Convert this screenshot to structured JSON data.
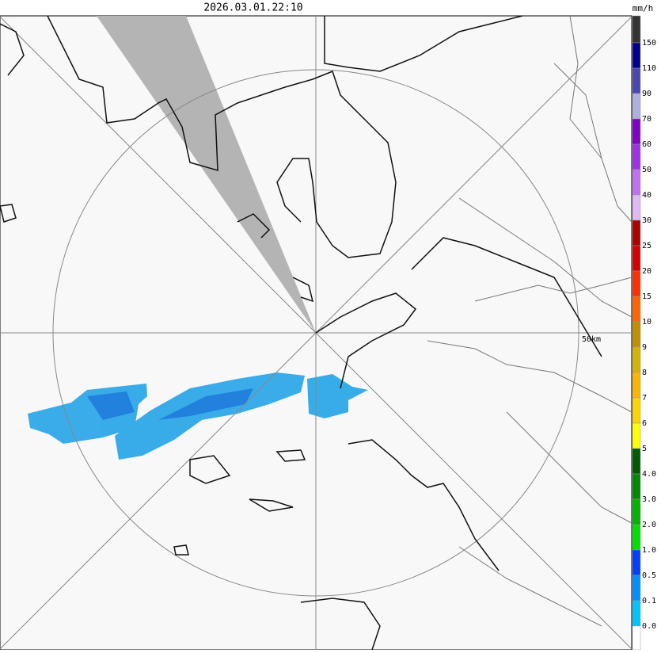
{
  "header": {
    "timestamp": "2026.03.01.22:10"
  },
  "map": {
    "range_label": "50km"
  },
  "legend": {
    "unit": "mm/h",
    "labels": [
      "150",
      "110",
      "90",
      "70",
      "60",
      "50",
      "40",
      "30",
      "25",
      "20",
      "15",
      "10",
      "9",
      "8",
      "7",
      "6",
      "5",
      "4.0",
      "3.0",
      "2.0",
      "1.0",
      "0.5",
      "0.1",
      "0.0"
    ],
    "colors": [
      "#333333",
      "#000090",
      "#4848b0",
      "#b0b0e0",
      "#8000c8",
      "#a030e8",
      "#c070f0",
      "#e0b8f4",
      "#b00000",
      "#d80000",
      "#ff3000",
      "#ff6400",
      "#c09000",
      "#d4b400",
      "#ffb400",
      "#ffd400",
      "#ffff00",
      "#005a00",
      "#008800",
      "#00b400",
      "#00e000",
      "#0040ff",
      "#0090ff",
      "#00c4ff",
      "#ffffff"
    ]
  }
}
